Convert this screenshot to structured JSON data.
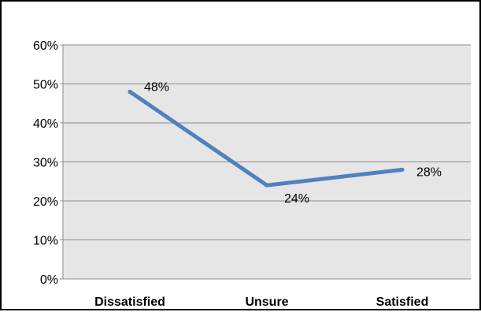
{
  "chart_data": {
    "type": "line",
    "categories": [
      "Dissatisfied",
      "Unsure",
      "Satisfied"
    ],
    "series": [
      {
        "values": [
          48,
          24,
          28
        ],
        "data_labels": [
          "48%",
          "24%",
          "28%"
        ]
      }
    ],
    "ylim": [
      0,
      60
    ],
    "yticks": [
      0,
      10,
      20,
      30,
      40,
      50,
      60
    ],
    "ytick_labels": [
      "0%",
      "10%",
      "20%",
      "30%",
      "40%",
      "50%",
      "60%"
    ],
    "grid": true,
    "legend": "none",
    "plot_background": "#e6e6e6",
    "series_color": "#4f81bd",
    "title": "",
    "xlabel": "",
    "ylabel": ""
  }
}
